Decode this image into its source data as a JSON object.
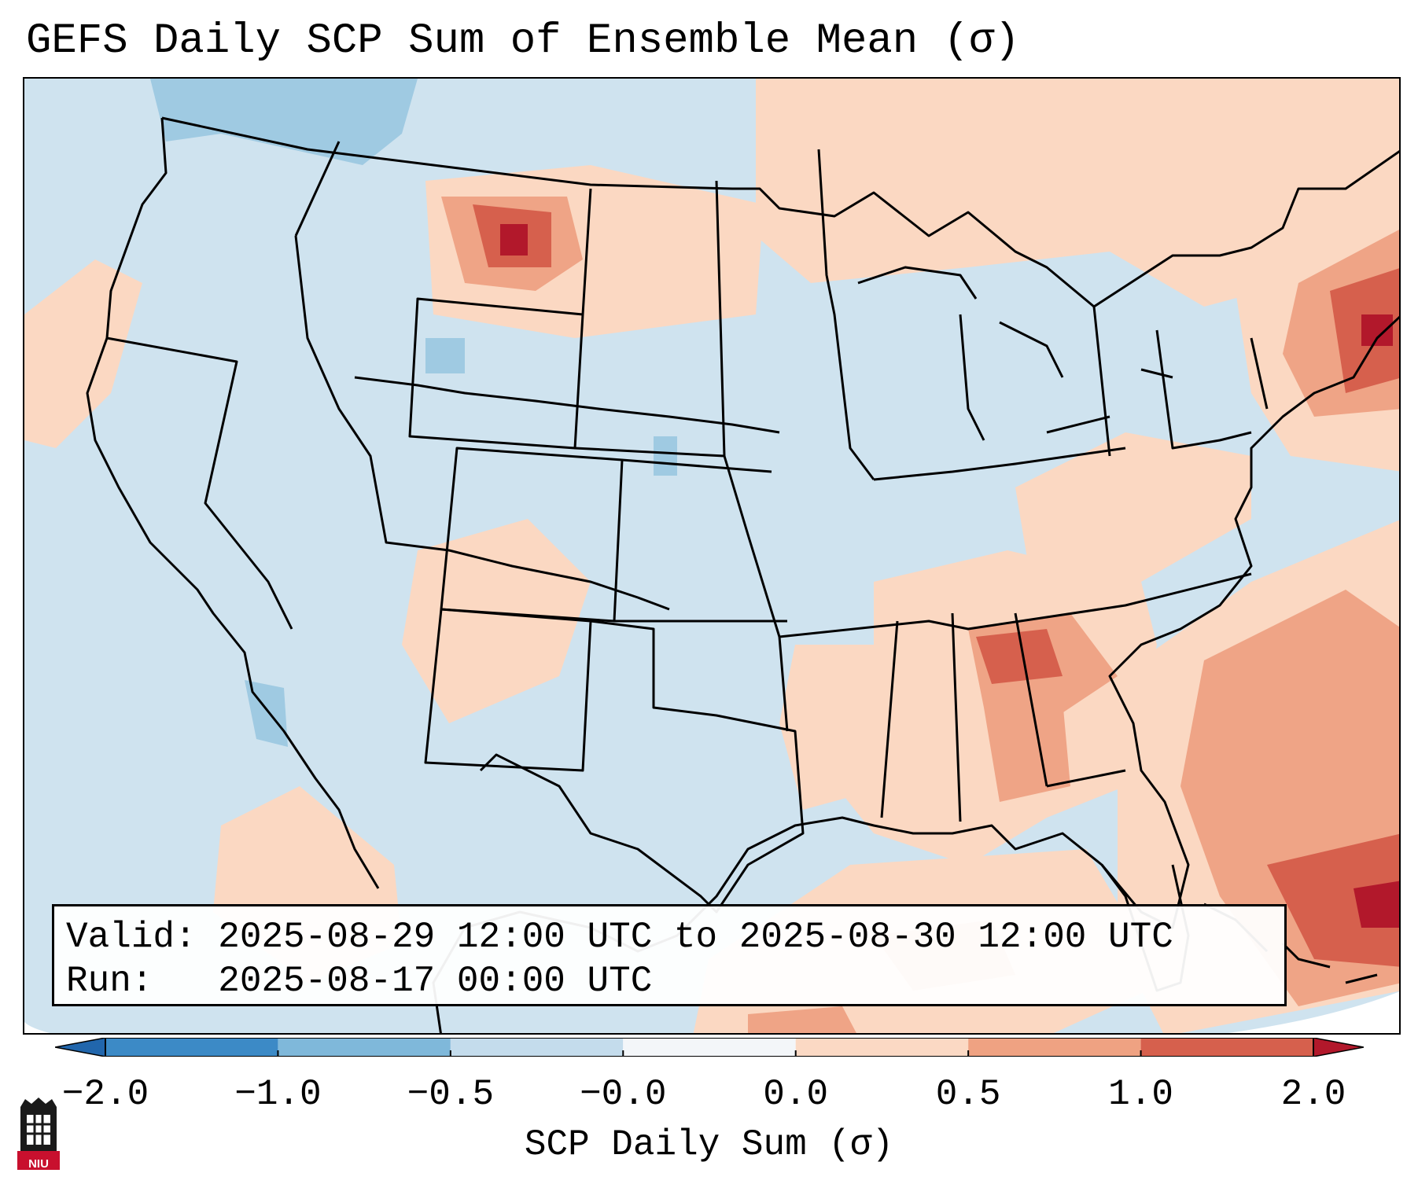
{
  "title": "GEFS Daily SCP Sum of Ensemble Mean (σ)",
  "info_box": {
    "valid_line": "Valid: 2025-08-29 12:00 UTC to 2025-08-30 12:00 UTC",
    "run_line": "Run:   2025-08-17 00:00 UTC"
  },
  "colorbar": {
    "label": "SCP Daily Sum (σ)",
    "ticks": [
      "−2.0",
      "−1.0",
      "−0.5",
      "−0.0",
      "0.0",
      "0.5",
      "1.0",
      "2.0"
    ],
    "colors": [
      "#3c8ac6",
      "#7fb8da",
      "#c4dcec",
      "#f3f6f9",
      "#fbd9c4",
      "#efa282",
      "#d6604d"
    ],
    "extend_low_color": "#2166ac",
    "extend_high_color": "#b2182b"
  },
  "map": {
    "base_color": "#cfe3ef",
    "outside_color": "#ffffff",
    "light_red": "#fbd8c2",
    "medium_red": "#efa486",
    "strong_red": "#d6604d",
    "dark_red": "#b2182b",
    "light_blue": "#9fcae2",
    "outline_color": "#000000"
  },
  "logo": {
    "text": "NIU",
    "color": "#c8102e"
  }
}
